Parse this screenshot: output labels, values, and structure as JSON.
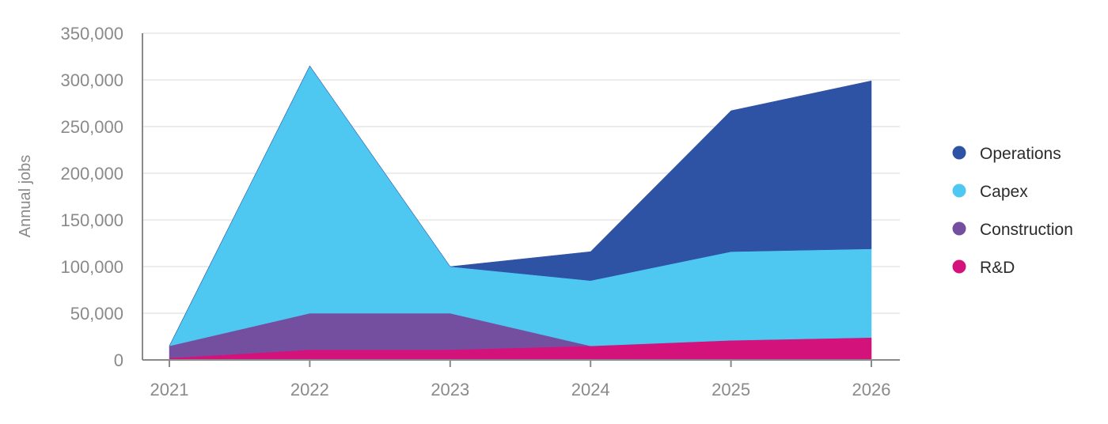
{
  "chart_data": {
    "type": "area",
    "stacked": true,
    "title": "",
    "xlabel": "",
    "ylabel": "Annual jobs",
    "x": [
      "2021",
      "2022",
      "2023",
      "2024",
      "2025",
      "2026"
    ],
    "ylim": [
      0,
      350000
    ],
    "yticks": [
      0,
      50000,
      100000,
      150000,
      200000,
      250000,
      300000,
      350000
    ],
    "ytick_labels": [
      "0",
      "50,000",
      "100,000",
      "150,000",
      "200,000",
      "250,000",
      "300,000",
      "350,000"
    ],
    "grid": "horizontal",
    "legend_position": "right",
    "series": [
      {
        "name": "R&D",
        "color": "#d4127c",
        "values": [
          2000,
          11000,
          11000,
          15000,
          21000,
          24000
        ]
      },
      {
        "name": "Construction",
        "color": "#744fa0",
        "values": [
          13000,
          39000,
          39000,
          0,
          0,
          0
        ]
      },
      {
        "name": "Capex",
        "color": "#4ec8f1",
        "values": [
          0,
          265000,
          50000,
          70000,
          95000,
          95000
        ]
      },
      {
        "name": "Operations",
        "color": "#2e52a4",
        "values": [
          0,
          0,
          0,
          31000,
          151000,
          180000
        ]
      }
    ],
    "legend_order": [
      "Operations",
      "Capex",
      "Construction",
      "R&D"
    ]
  }
}
